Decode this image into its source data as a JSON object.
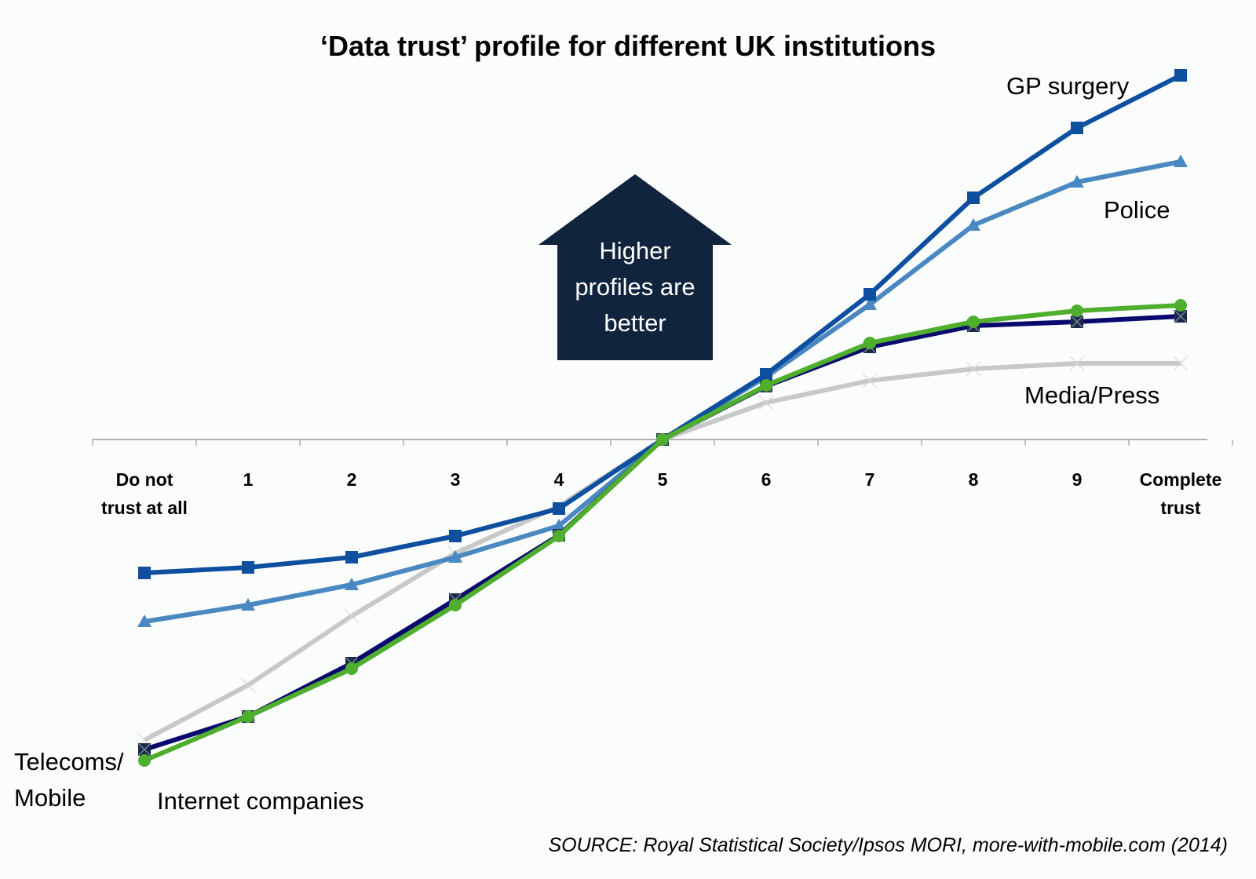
{
  "chart_data": {
    "type": "line",
    "title": "‘Data trust’ profile for different UK institutions",
    "xlabel": "",
    "ylabel": "",
    "categories": [
      "Do not trust at all",
      "1",
      "2",
      "3",
      "4",
      "5",
      "6",
      "7",
      "8",
      "9",
      "Complete trust"
    ],
    "y_units": "relative profile (centered at 5, no y-axis shown)",
    "ylim": [
      -45,
      50
    ],
    "grid": false,
    "legend": "inline labels",
    "series": [
      {
        "name": "GP surgery",
        "color": "#0f4fa0",
        "marker": "square",
        "values": [
          -17,
          -16.3,
          -15,
          -12.3,
          -8.8,
          0,
          8.3,
          18.5,
          30.8,
          39.7,
          46.4
        ]
      },
      {
        "name": "Police",
        "color": "#4a88c2",
        "marker": "triangle",
        "values": [
          -23.2,
          -21.1,
          -18.5,
          -15,
          -11,
          0,
          8,
          17.2,
          27.3,
          32.8,
          35.4
        ]
      },
      {
        "name": "Telecoms/Mobile",
        "color": "#0a0a6e",
        "marker": "x-square",
        "values": [
          -39.5,
          -35.3,
          -28.5,
          -20.4,
          -12.2,
          0,
          6.8,
          11.8,
          14.5,
          15,
          15.7
        ]
      },
      {
        "name": "Internet companies",
        "color": "#4fae2e",
        "marker": "circle",
        "values": [
          -40.9,
          -35.3,
          -29.2,
          -21.1,
          -12.3,
          0,
          6.9,
          12.3,
          15,
          16.4,
          17.1
        ]
      },
      {
        "name": "Media/Press",
        "color": "#c8c8c8",
        "marker": "x",
        "values": [
          -38.3,
          -31.3,
          -22.5,
          -14.5,
          -8.5,
          0,
          4.7,
          7.5,
          9,
          9.7,
          9.7
        ]
      }
    ],
    "annotations": [
      "Higher profiles are better"
    ]
  },
  "title": "‘Data trust’ profile for different UK institutions",
  "axis": {
    "ticks": [
      [
        "Do not",
        "trust at all"
      ],
      [
        "1"
      ],
      [
        "2"
      ],
      [
        "3"
      ],
      [
        "4"
      ],
      [
        "5"
      ],
      [
        "6"
      ],
      [
        "7"
      ],
      [
        "8"
      ],
      [
        "9"
      ],
      [
        "Complete",
        "trust"
      ]
    ]
  },
  "labels": {
    "gp": "GP surgery",
    "police": "Police",
    "media": "Media/Press",
    "telecoms_1": "Telecoms/",
    "telecoms_2": "Mobile",
    "internet": "Internet companies"
  },
  "arrow": {
    "line1": "Higher",
    "line2": "profiles are",
    "line3": "better",
    "color": "#10243e"
  },
  "source": "SOURCE: Royal Statistical Society/Ipsos MORI, more-with-mobile.com (2014)"
}
